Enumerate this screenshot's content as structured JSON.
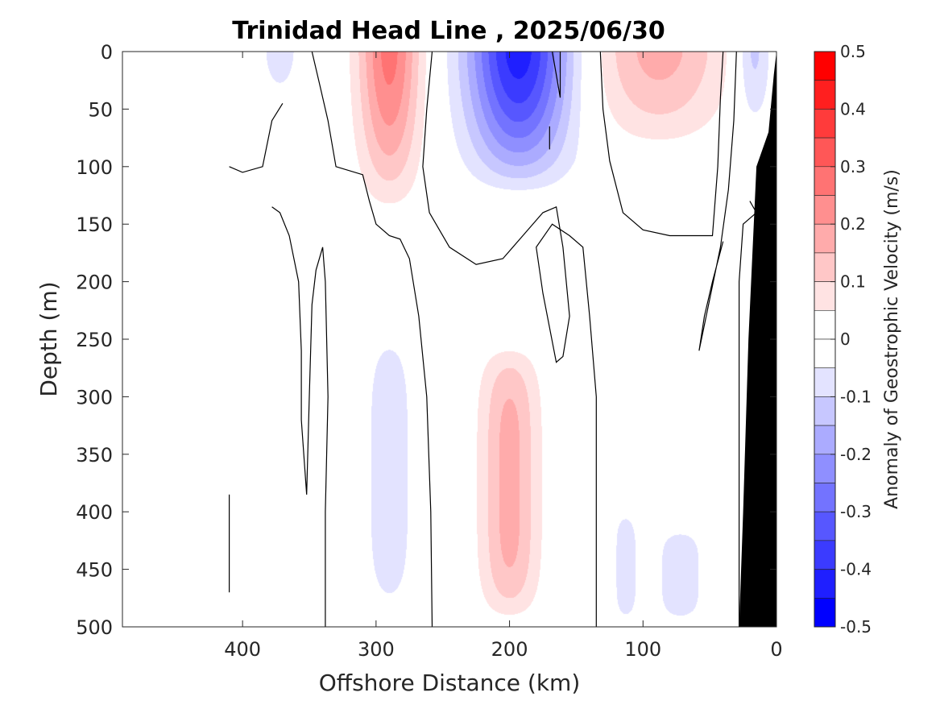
{
  "chart_data": {
    "type": "heatmap",
    "title": "Trinidad Head Line , 2025/06/30",
    "xlabel": "Offshore Distance (km)",
    "ylabel": "Depth (m)",
    "xlim": [
      490,
      0
    ],
    "ylim": [
      0,
      500
    ],
    "x_reversed": true,
    "y_reversed": true,
    "x_ticks": [
      400,
      300,
      200,
      100,
      0
    ],
    "y_ticks": [
      0,
      50,
      100,
      150,
      200,
      250,
      300,
      350,
      400,
      450,
      500
    ],
    "grid": false,
    "colorbar": {
      "label": "Anomaly of Geostrophic Velocity (m/s)",
      "range": [
        -0.5,
        0.5
      ],
      "ticks": [
        0.5,
        0.4,
        0.3,
        0.2,
        0.1,
        0,
        -0.1,
        -0.2,
        -0.3,
        -0.4,
        -0.5
      ],
      "tick_labels": [
        "0.5",
        "0.4",
        "0.3",
        "0.2",
        "0.1",
        "0",
        "-0.1",
        "-0.2",
        "-0.3",
        "-0.4",
        "-0.5"
      ],
      "level_step": 0.05,
      "levels": [
        {
          "min": 0.45,
          "max": 0.5,
          "color": "#ff0000"
        },
        {
          "min": 0.4,
          "max": 0.45,
          "color": "#ff1f1f"
        },
        {
          "min": 0.35,
          "max": 0.4,
          "color": "#ff3b3b"
        },
        {
          "min": 0.3,
          "max": 0.35,
          "color": "#ff5757"
        },
        {
          "min": 0.25,
          "max": 0.3,
          "color": "#ff7373"
        },
        {
          "min": 0.2,
          "max": 0.25,
          "color": "#ff8f8f"
        },
        {
          "min": 0.15,
          "max": 0.2,
          "color": "#ffabab"
        },
        {
          "min": 0.1,
          "max": 0.15,
          "color": "#ffc7c7"
        },
        {
          "min": 0.05,
          "max": 0.1,
          "color": "#ffe3e3"
        },
        {
          "min": 0,
          "max": 0.05,
          "color": "#ffffff"
        },
        {
          "min": -0.05,
          "max": 0,
          "color": "#ffffff"
        },
        {
          "min": -0.1,
          "max": -0.05,
          "color": "#e3e3ff"
        },
        {
          "min": -0.15,
          "max": -0.1,
          "color": "#c7c7ff"
        },
        {
          "min": -0.2,
          "max": -0.15,
          "color": "#ababff"
        },
        {
          "min": -0.25,
          "max": -0.2,
          "color": "#8f8fff"
        },
        {
          "min": -0.3,
          "max": -0.25,
          "color": "#7373ff"
        },
        {
          "min": -0.35,
          "max": -0.3,
          "color": "#5757ff"
        },
        {
          "min": -0.4,
          "max": -0.35,
          "color": "#3b3bff"
        },
        {
          "min": -0.45,
          "max": -0.4,
          "color": "#1f1fff"
        },
        {
          "min": -0.5,
          "max": -0.45,
          "color": "#0000ff"
        }
      ]
    },
    "velocity_features": [
      {
        "name": "positive core near 290 km",
        "x_center": 290,
        "x_halfwidth": 23,
        "depth_max": 150,
        "peak": 0.27
      },
      {
        "name": "negative core near 190 km",
        "x_center": 193,
        "x_halfwidth": 38,
        "depth_max": 130,
        "peak": -0.43
      },
      {
        "name": "positive lobe near 100 km",
        "x_center": 88,
        "x_halfwidth": 50,
        "depth_max": 95,
        "peak": 0.17
      },
      {
        "name": "negative patch near 15 km",
        "x_center": 17,
        "x_halfwidth": 13,
        "depth_max": 80,
        "peak": -0.13
      },
      {
        "name": "negative patch near 370 km",
        "x_center": 372,
        "x_halfwidth": 15,
        "depth_max": 50,
        "peak": -0.08
      },
      {
        "name": "deep negative column near 290 km",
        "x_center": 290,
        "x_halfwidth": 20,
        "depth_min": 230,
        "depth_max": 500,
        "peak": -0.08
      },
      {
        "name": "deep positive column near 200 km",
        "x_center": 200,
        "x_halfwidth": 22,
        "depth_min": 250,
        "depth_max": 500,
        "peak": 0.17
      },
      {
        "name": "deep negative patch near 115 km",
        "x_center": 113,
        "x_halfwidth": 10,
        "depth_min": 395,
        "depth_max": 500,
        "peak": -0.08
      },
      {
        "name": "deep negative patch near 70 km",
        "x_center": 72,
        "x_halfwidth": 20,
        "depth_min": 410,
        "depth_max": 500,
        "peak": -0.08
      }
    ],
    "zero_contours": [
      [
        [
          348,
          0
        ],
        [
          342,
          30
        ],
        [
          336,
          60
        ],
        [
          330,
          100
        ],
        [
          310,
          107
        ],
        [
          305,
          130
        ],
        [
          300,
          150
        ],
        [
          290,
          160
        ],
        [
          282,
          163
        ],
        [
          275,
          180
        ],
        [
          268,
          230
        ],
        [
          262,
          300
        ],
        [
          259,
          400
        ],
        [
          258,
          500
        ]
      ],
      [
        [
          258,
          0
        ],
        [
          262,
          50
        ],
        [
          265,
          100
        ],
        [
          260,
          140
        ],
        [
          245,
          170
        ],
        [
          225,
          185
        ],
        [
          205,
          180
        ],
        [
          190,
          160
        ],
        [
          175,
          140
        ],
        [
          165,
          135
        ],
        [
          160,
          170
        ],
        [
          155,
          230
        ],
        [
          160,
          265
        ],
        [
          165,
          270
        ],
        [
          170,
          240
        ],
        [
          175,
          210
        ],
        [
          180,
          170
        ],
        [
          168,
          150
        ],
        [
          155,
          160
        ],
        [
          145,
          170
        ],
        [
          140,
          230
        ],
        [
          135,
          300
        ],
        [
          135,
          400
        ],
        [
          135,
          500
        ]
      ],
      [
        [
          370,
          45
        ],
        [
          378,
          60
        ],
        [
          385,
          100
        ],
        [
          400,
          105
        ],
        [
          410,
          100
        ]
      ],
      [
        [
          378,
          135
        ],
        [
          372,
          140
        ],
        [
          365,
          160
        ],
        [
          358,
          200
        ],
        [
          356,
          260
        ],
        [
          356,
          320
        ],
        [
          352,
          385
        ],
        [
          350,
          300
        ],
        [
          348,
          220
        ],
        [
          345,
          190
        ],
        [
          340,
          170
        ],
        [
          338,
          200
        ],
        [
          336,
          300
        ],
        [
          338,
          400
        ],
        [
          338,
          500
        ]
      ],
      [
        [
          168,
          0
        ],
        [
          165,
          20
        ],
        [
          162,
          40
        ],
        [
          162,
          0
        ]
      ],
      [
        [
          170,
          65
        ],
        [
          170,
          85
        ]
      ],
      [
        [
          40,
          0
        ],
        [
          42,
          40
        ],
        [
          44,
          100
        ],
        [
          48,
          160
        ],
        [
          65,
          160
        ],
        [
          80,
          160
        ],
        [
          100,
          155
        ],
        [
          115,
          140
        ],
        [
          125,
          95
        ],
        [
          130,
          50
        ],
        [
          132,
          0
        ]
      ],
      [
        [
          30,
          0
        ],
        [
          32,
          60
        ],
        [
          36,
          120
        ],
        [
          42,
          170
        ],
        [
          58,
          260
        ],
        [
          54,
          230
        ],
        [
          48,
          200
        ],
        [
          40,
          165
        ]
      ],
      [
        [
          410,
          385
        ],
        [
          410,
          470
        ]
      ],
      [
        [
          20,
          130
        ],
        [
          15,
          140
        ],
        [
          25,
          150
        ],
        [
          28,
          200
        ],
        [
          28,
          300
        ],
        [
          28,
          400
        ],
        [
          28,
          500
        ]
      ]
    ],
    "bathymetry_polygon": [
      [
        0,
        0
      ],
      [
        2,
        20
      ],
      [
        6,
        70
      ],
      [
        12,
        90
      ],
      [
        15,
        100
      ],
      [
        17,
        150
      ],
      [
        21,
        250
      ],
      [
        25,
        400
      ],
      [
        28,
        500
      ],
      [
        0,
        500
      ]
    ]
  }
}
